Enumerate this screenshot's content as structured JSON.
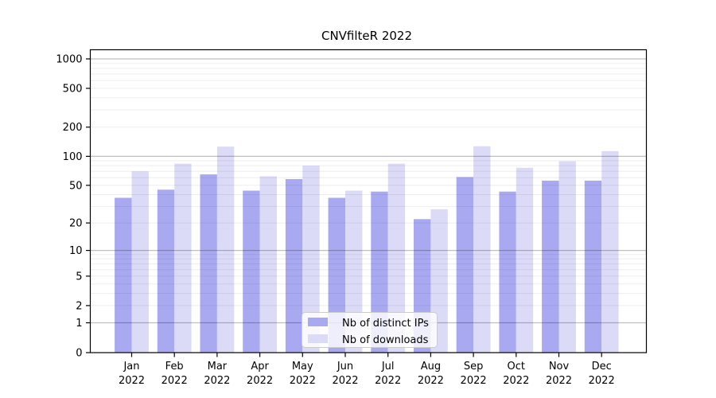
{
  "chart_data": {
    "type": "bar",
    "title": "CNVfilteR 2022",
    "categories": [
      "Jan 2022",
      "Feb 2022",
      "Mar 2022",
      "Apr 2022",
      "May 2022",
      "Jun 2022",
      "Jul 2022",
      "Aug 2022",
      "Sep 2022",
      "Oct 2022",
      "Nov 2022",
      "Dec 2022"
    ],
    "series": [
      {
        "name": "Nb of distinct IPs",
        "color": "#a9a9f1",
        "values": [
          37,
          45,
          65,
          44,
          58,
          37,
          43,
          22,
          61,
          43,
          56,
          56
        ]
      },
      {
        "name": "Nb of downloads",
        "color": "#dbdbf8",
        "values": [
          70,
          84,
          126,
          62,
          80,
          44,
          84,
          28,
          127,
          76,
          89,
          113
        ]
      }
    ],
    "y_axis": {
      "ticks": [
        0,
        1,
        2,
        5,
        10,
        20,
        50,
        100,
        200,
        500,
        1000
      ],
      "scale": "log10(value+1)",
      "range": [
        0,
        1000
      ],
      "major_grid_at": [
        1,
        10,
        100,
        1000
      ],
      "minor_grid": "2-9 within each decade"
    },
    "legend": {
      "position": "inside-bottom-center"
    },
    "grid": "horizontal only",
    "colors": {
      "axis": "#000000",
      "major_grid": "rgba(0,0,0,0.25)",
      "minor_grid": "rgba(0,0,0,0.07)"
    }
  }
}
